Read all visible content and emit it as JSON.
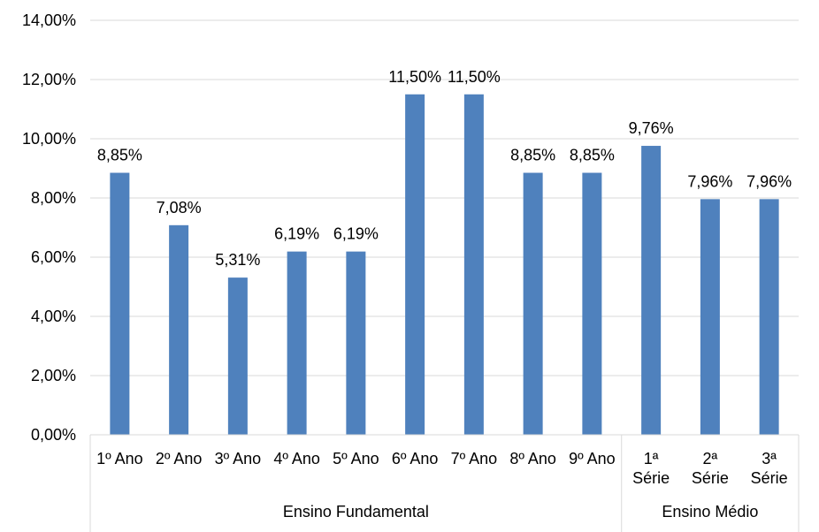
{
  "chart_data": {
    "type": "bar",
    "title": "",
    "xlabel": "",
    "ylabel": "",
    "ylim": [
      0,
      14
    ],
    "y_ticks": [
      "0,00%",
      "2,00%",
      "4,00%",
      "6,00%",
      "8,00%",
      "10,00%",
      "12,00%",
      "14,00%"
    ],
    "grid": true,
    "bar_color": "#4F81BD",
    "categories": [
      [
        "1º Ano"
      ],
      [
        "2º Ano"
      ],
      [
        "3º Ano"
      ],
      [
        "4º Ano"
      ],
      [
        "5º Ano"
      ],
      [
        "6º Ano"
      ],
      [
        "7º Ano"
      ],
      [
        "8º Ano"
      ],
      [
        "9º Ano"
      ],
      [
        "1ª",
        "Série"
      ],
      [
        "2ª",
        "Série"
      ],
      [
        "3ª",
        "Série"
      ]
    ],
    "values": [
      8.85,
      7.08,
      5.31,
      6.19,
      6.19,
      11.5,
      11.5,
      8.85,
      8.85,
      9.76,
      7.96,
      7.96
    ],
    "data_labels": [
      "8,85%",
      "7,08%",
      "5,31%",
      "6,19%",
      "6,19%",
      "11,50%",
      "11,50%",
      "8,85%",
      "8,85%",
      "9,76%",
      "7,96%",
      "7,96%"
    ],
    "groups": [
      {
        "label": "Ensino Fundamental",
        "count": 9
      },
      {
        "label": "Ensino Médio",
        "count": 3
      }
    ]
  }
}
